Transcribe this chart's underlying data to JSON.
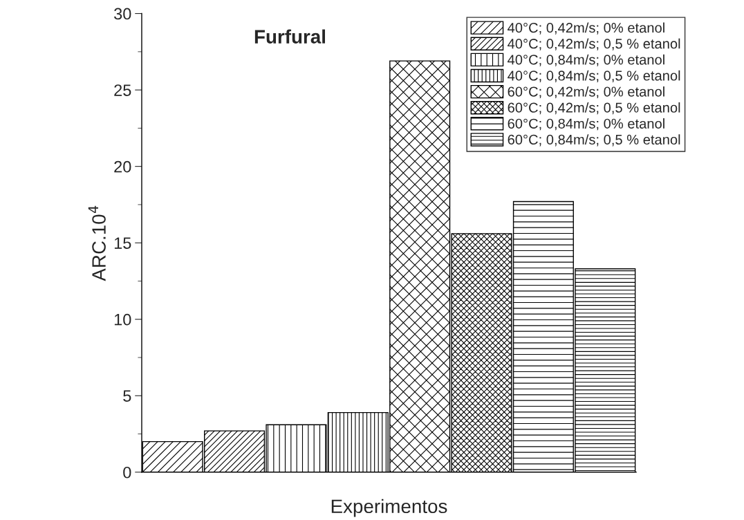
{
  "chart_data": {
    "type": "bar",
    "title": "Furfural",
    "xlabel": "Experimentos",
    "ylabel": "ARC.10$^{4}$",
    "categories": [
      null,
      null,
      null,
      null,
      null,
      null,
      null,
      null
    ],
    "series": [
      {
        "name": "40°C; 0,42m/s; 0% etanol",
        "color": "#000000",
        "values": [
          2.0,
          null,
          null,
          null,
          null,
          null,
          null,
          null
        ]
      },
      {
        "name": "40°C; 0,42m/s; 0,5 % etanol",
        "color": "#000000",
        "values": [
          null,
          2.7,
          null,
          null,
          null,
          null,
          null,
          null
        ]
      },
      {
        "name": "40°C; 0,84m/s; 0% etanol",
        "color": "#000000",
        "values": [
          null,
          null,
          3.1,
          null,
          null,
          null,
          null,
          null
        ]
      },
      {
        "name": "40°C; 0,84m/s; 0,5 % etanol",
        "color": "#000000",
        "values": [
          null,
          null,
          null,
          3.9,
          null,
          null,
          null,
          null
        ]
      },
      {
        "name": "60°C; 0,42m/s; 0% etanol",
        "color": "#000000",
        "values": [
          null,
          null,
          null,
          null,
          26.9,
          null,
          null,
          null
        ]
      },
      {
        "name": "60°C; 0,42m/s; 0,5 % etanol",
        "color": "#000000",
        "values": [
          null,
          null,
          null,
          null,
          null,
          15.6,
          null,
          null
        ]
      },
      {
        "name": "60°C; 0,84m/s; 0% etanol",
        "color": "#000000",
        "values": [
          null,
          null,
          null,
          null,
          null,
          null,
          17.7,
          null
        ]
      },
      {
        "name": "60°C; 0,84m/s; 0,5 % etanol",
        "color": "#000000",
        "values": [
          null,
          null,
          null,
          null,
          null,
          null,
          null,
          13.3
        ]
      }
    ],
    "ylim": [
      0,
      30
    ],
    "yticks": [
      0,
      5,
      10,
      15,
      20,
      25,
      30
    ],
    "tick_labels": "y",
    "grid": false,
    "legend": "top right"
  }
}
